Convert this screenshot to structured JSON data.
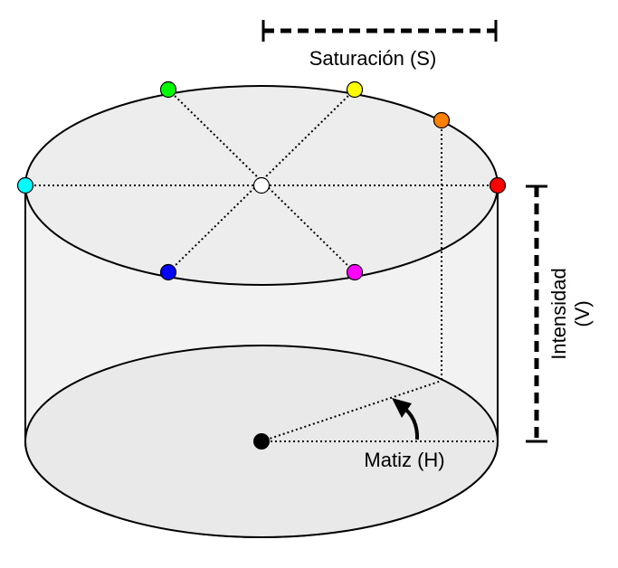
{
  "labels": {
    "saturation": "Saturación (S)",
    "intensity_line1": "Intensidad",
    "intensity_line2": "(V)",
    "hue": "Matiz (H)"
  },
  "colors": {
    "cylinder_fill": "#f2f2f2",
    "top_fill": "#ededed",
    "bottom_fill": "#e9e9e9",
    "stroke": "#000000",
    "green": "#00ff00",
    "yellow": "#ffff00",
    "orange": "#ff8000",
    "cyan": "#00ffff",
    "white": "#ffffff",
    "red": "#ff0000",
    "blue": "#0000ff",
    "magenta": "#ff00ff",
    "black": "#000000"
  },
  "hue_points": [
    {
      "name": "green",
      "color": "#00ff00"
    },
    {
      "name": "yellow",
      "color": "#ffff00"
    },
    {
      "name": "orange",
      "color": "#ff8000"
    },
    {
      "name": "cyan",
      "color": "#00ffff"
    },
    {
      "name": "white",
      "color": "#ffffff"
    },
    {
      "name": "red",
      "color": "#ff0000"
    },
    {
      "name": "blue",
      "color": "#0000ff"
    },
    {
      "name": "magenta",
      "color": "#ff00ff"
    }
  ]
}
